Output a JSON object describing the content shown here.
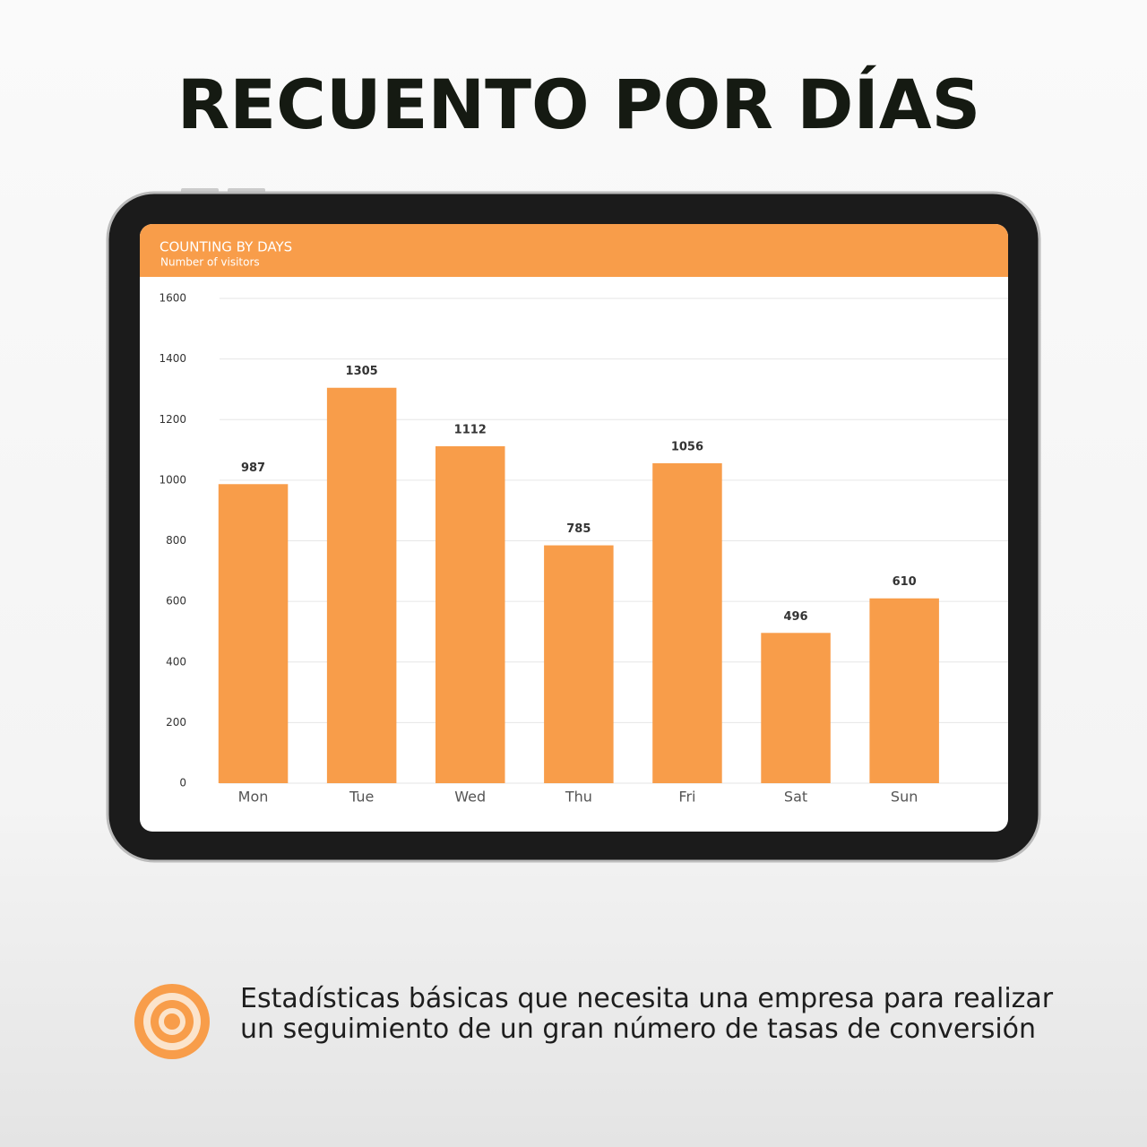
{
  "header": {
    "title": "RECUENTO POR DÍAS"
  },
  "chart_data": {
    "type": "bar",
    "title": "COUNTING BY DAYS",
    "subtitle": "Number of visitors",
    "categories": [
      "Mon",
      "Tue",
      "Wed",
      "Thu",
      "Fri",
      "Sat",
      "Sun"
    ],
    "values": [
      987,
      1305,
      1112,
      785,
      1056,
      496,
      610
    ],
    "color": "#f89d4a",
    "ylim": [
      0,
      1600
    ],
    "yticks": [
      0,
      200,
      400,
      600,
      800,
      1000,
      1200,
      1400,
      1600
    ],
    "grid": true
  },
  "footer": {
    "text": "Estadísticas básicas que necesita una empresa para realizar un seguimiento de un gran número de tasas de conversión"
  }
}
